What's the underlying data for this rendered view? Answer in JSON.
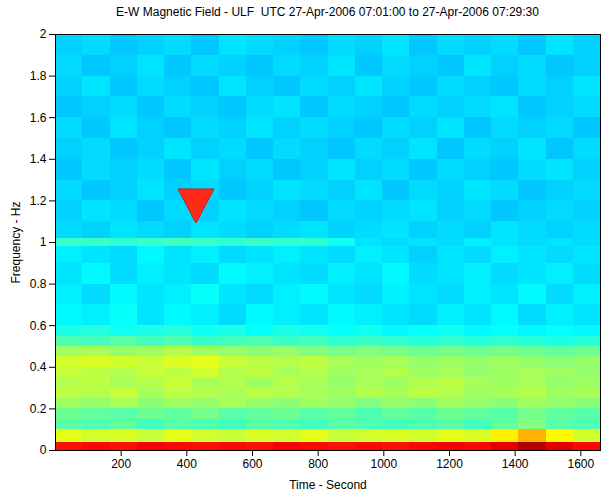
{
  "chart_data": {
    "type": "heatmap",
    "title": "E-W Magnetic Field - ULF  UTC 27-Apr-2006 07:01:00 to 27-Apr-2006 07:29:30",
    "x_label": "Time - Second",
    "y_label": "Frequency - Hz",
    "xlim": [
      0,
      1660
    ],
    "xticks": [
      200,
      400,
      600,
      800,
      1000,
      1200,
      1400,
      1600
    ],
    "ylim": [
      0,
      2
    ],
    "yticks": [
      0,
      0.2,
      0.4,
      0.6,
      0.8,
      1,
      1.2,
      1.4,
      1.6,
      1.8,
      2
    ],
    "zlim": [
      0,
      1
    ],
    "x_bins": [
      0,
      83,
      166,
      249,
      332,
      415,
      498,
      581,
      664,
      747,
      830,
      913,
      996,
      1079,
      1162,
      1245,
      1328,
      1411,
      1494,
      1577,
      1660
    ],
    "y_bins": [
      0,
      0.04,
      0.1,
      0.15,
      0.2,
      0.25,
      0.3,
      0.35,
      0.4,
      0.45,
      0.5,
      0.55,
      0.6,
      0.7,
      0.8,
      0.9,
      0.98,
      1.02,
      1.1,
      1.2,
      1.3,
      1.4,
      1.5,
      1.6,
      1.7,
      1.8,
      1.9,
      2
    ],
    "values": [
      [
        0.86,
        0.87,
        0.86,
        0.88,
        0.87,
        0.86,
        0.87,
        0.86,
        0.88,
        0.87,
        0.86,
        0.87,
        0.86,
        0.87,
        0.88,
        0.87,
        0.9,
        0.95,
        0.9,
        0.87
      ],
      [
        0.6,
        0.58,
        0.59,
        0.57,
        0.6,
        0.58,
        0.57,
        0.59,
        0.58,
        0.6,
        0.57,
        0.58,
        0.59,
        0.58,
        0.6,
        0.59,
        0.64,
        0.7,
        0.63,
        0.58
      ],
      [
        0.46,
        0.45,
        0.47,
        0.44,
        0.46,
        0.45,
        0.44,
        0.46,
        0.45,
        0.44,
        0.46,
        0.45,
        0.44,
        0.45,
        0.46,
        0.44,
        0.47,
        0.5,
        0.46,
        0.45
      ],
      [
        0.48,
        0.47,
        0.46,
        0.48,
        0.47,
        0.49,
        0.46,
        0.47,
        0.48,
        0.46,
        0.47,
        0.45,
        0.47,
        0.46,
        0.48,
        0.47,
        0.46,
        0.49,
        0.47,
        0.46
      ],
      [
        0.53,
        0.52,
        0.54,
        0.51,
        0.53,
        0.52,
        0.54,
        0.52,
        0.51,
        0.53,
        0.52,
        0.5,
        0.52,
        0.51,
        0.53,
        0.52,
        0.51,
        0.53,
        0.52,
        0.51
      ],
      [
        0.56,
        0.55,
        0.57,
        0.54,
        0.56,
        0.55,
        0.54,
        0.56,
        0.55,
        0.54,
        0.53,
        0.55,
        0.54,
        0.56,
        0.55,
        0.53,
        0.54,
        0.55,
        0.53,
        0.54
      ],
      [
        0.55,
        0.56,
        0.54,
        0.55,
        0.57,
        0.54,
        0.55,
        0.53,
        0.55,
        0.54,
        0.52,
        0.54,
        0.53,
        0.55,
        0.56,
        0.54,
        0.53,
        0.54,
        0.52,
        0.53
      ],
      [
        0.57,
        0.56,
        0.55,
        0.57,
        0.56,
        0.58,
        0.55,
        0.56,
        0.54,
        0.55,
        0.53,
        0.54,
        0.55,
        0.53,
        0.54,
        0.52,
        0.53,
        0.54,
        0.53,
        0.52
      ],
      [
        0.58,
        0.59,
        0.58,
        0.57,
        0.59,
        0.6,
        0.57,
        0.56,
        0.55,
        0.56,
        0.54,
        0.53,
        0.54,
        0.52,
        0.53,
        0.52,
        0.53,
        0.52,
        0.51,
        0.52
      ],
      [
        0.53,
        0.54,
        0.52,
        0.53,
        0.55,
        0.53,
        0.52,
        0.51,
        0.52,
        0.5,
        0.49,
        0.5,
        0.49,
        0.48,
        0.49,
        0.48,
        0.49,
        0.48,
        0.47,
        0.48
      ],
      [
        0.45,
        0.44,
        0.46,
        0.44,
        0.45,
        0.43,
        0.44,
        0.45,
        0.43,
        0.44,
        0.42,
        0.43,
        0.42,
        0.41,
        0.42,
        0.41,
        0.42,
        0.41,
        0.4,
        0.41
      ],
      [
        0.4,
        0.41,
        0.39,
        0.4,
        0.41,
        0.39,
        0.4,
        0.38,
        0.4,
        0.39,
        0.38,
        0.39,
        0.37,
        0.38,
        0.39,
        0.37,
        0.38,
        0.37,
        0.38,
        0.37
      ],
      [
        0.37,
        0.36,
        0.38,
        0.35,
        0.37,
        0.36,
        0.34,
        0.37,
        0.36,
        0.35,
        0.37,
        0.36,
        0.35,
        0.34,
        0.36,
        0.35,
        0.37,
        0.34,
        0.36,
        0.35
      ],
      [
        0.36,
        0.34,
        0.37,
        0.35,
        0.36,
        0.38,
        0.35,
        0.34,
        0.36,
        0.37,
        0.35,
        0.34,
        0.36,
        0.35,
        0.34,
        0.36,
        0.35,
        0.37,
        0.34,
        0.36
      ],
      [
        0.35,
        0.37,
        0.34,
        0.36,
        0.35,
        0.34,
        0.37,
        0.36,
        0.35,
        0.34,
        0.36,
        0.35,
        0.37,
        0.34,
        0.35,
        0.36,
        0.34,
        0.35,
        0.36,
        0.34
      ],
      [
        0.36,
        0.35,
        0.34,
        0.37,
        0.35,
        0.36,
        0.34,
        0.35,
        0.36,
        0.35,
        0.34,
        0.36,
        0.35,
        0.33,
        0.35,
        0.34,
        0.36,
        0.35,
        0.34,
        0.35
      ],
      [
        0.43,
        0.43,
        0.42,
        0.43,
        0.44,
        0.43,
        0.42,
        0.43,
        0.42,
        0.42,
        0.39,
        0.35,
        0.34,
        0.35,
        0.34,
        0.36,
        0.35,
        0.34,
        0.35,
        0.34
      ],
      [
        0.34,
        0.33,
        0.35,
        0.34,
        0.33,
        0.35,
        0.34,
        0.33,
        0.34,
        0.35,
        0.33,
        0.34,
        0.35,
        0.33,
        0.34,
        0.33,
        0.35,
        0.34,
        0.33,
        0.34
      ],
      [
        0.33,
        0.35,
        0.34,
        0.32,
        0.34,
        0.33,
        0.35,
        0.34,
        0.33,
        0.32,
        0.34,
        0.33,
        0.34,
        0.35,
        0.33,
        0.34,
        0.32,
        0.33,
        0.34,
        0.33
      ],
      [
        0.34,
        0.32,
        0.33,
        0.35,
        0.33,
        0.34,
        0.32,
        0.33,
        0.35,
        0.34,
        0.33,
        0.35,
        0.32,
        0.34,
        0.33,
        0.35,
        0.34,
        0.32,
        0.33,
        0.34
      ],
      [
        0.32,
        0.34,
        0.33,
        0.34,
        0.32,
        0.35,
        0.33,
        0.34,
        0.32,
        0.33,
        0.35,
        0.33,
        0.34,
        0.32,
        0.34,
        0.33,
        0.32,
        0.34,
        0.35,
        0.33
      ],
      [
        0.33,
        0.34,
        0.32,
        0.33,
        0.35,
        0.33,
        0.34,
        0.32,
        0.34,
        0.33,
        0.32,
        0.34,
        0.33,
        0.35,
        0.32,
        0.34,
        0.33,
        0.35,
        0.32,
        0.34
      ],
      [
        0.34,
        0.32,
        0.35,
        0.33,
        0.32,
        0.34,
        0.33,
        0.35,
        0.33,
        0.34,
        0.33,
        0.32,
        0.34,
        0.33,
        0.35,
        0.32,
        0.34,
        0.33,
        0.34,
        0.32
      ],
      [
        0.32,
        0.33,
        0.34,
        0.32,
        0.34,
        0.33,
        0.32,
        0.34,
        0.35,
        0.32,
        0.34,
        0.33,
        0.32,
        0.34,
        0.33,
        0.34,
        0.35,
        0.32,
        0.33,
        0.34
      ],
      [
        0.33,
        0.35,
        0.32,
        0.34,
        0.33,
        0.32,
        0.35,
        0.33,
        0.32,
        0.34,
        0.33,
        0.35,
        0.33,
        0.32,
        0.34,
        0.33,
        0.32,
        0.34,
        0.33,
        0.35
      ],
      [
        0.34,
        0.32,
        0.33,
        0.35,
        0.32,
        0.34,
        0.33,
        0.32,
        0.34,
        0.33,
        0.35,
        0.32,
        0.34,
        0.33,
        0.32,
        0.35,
        0.33,
        0.34,
        0.32,
        0.33
      ],
      [
        0.33,
        0.34,
        0.32,
        0.33,
        0.34,
        0.32,
        0.35,
        0.34,
        0.33,
        0.32,
        0.34,
        0.33,
        0.35,
        0.32,
        0.34,
        0.33,
        0.34,
        0.32,
        0.35,
        0.33
      ]
    ]
  }
}
